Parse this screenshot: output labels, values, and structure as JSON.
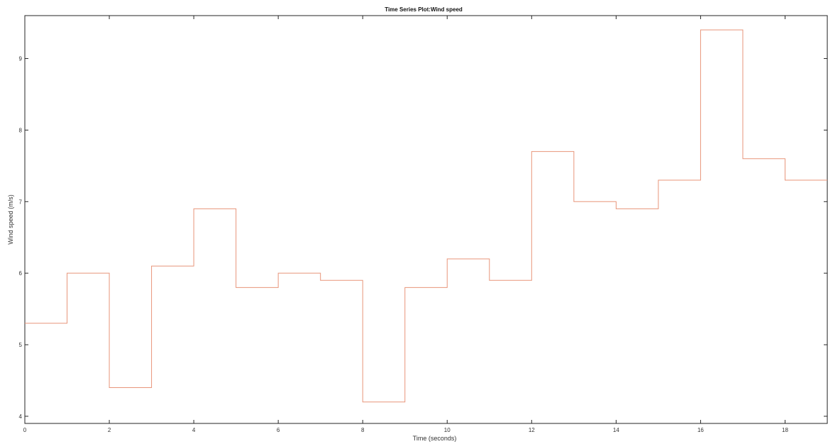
{
  "chart_data": {
    "type": "line",
    "title": "Time Series Plot:Wind speed",
    "xlabel": "Time (seconds)",
    "ylabel": "Wind speed (m/s)",
    "xlim": [
      0,
      19
    ],
    "ylim": [
      3.9,
      9.6
    ],
    "xticks": [
      0,
      2,
      4,
      6,
      8,
      10,
      12,
      14,
      16,
      18
    ],
    "yticks": [
      4,
      5,
      6,
      7,
      8,
      9
    ],
    "line_style": "step",
    "line_color": "#e8957a",
    "grid": false,
    "series": [
      {
        "x": [
          0,
          1,
          2,
          3,
          4,
          5,
          6,
          7,
          8,
          9,
          10,
          11,
          12,
          13,
          14,
          15,
          16,
          17,
          18
        ],
        "values": [
          5.3,
          6.0,
          4.4,
          6.1,
          6.9,
          5.8,
          6.0,
          5.9,
          4.2,
          5.8,
          6.2,
          5.9,
          7.7,
          7.0,
          6.9,
          7.3,
          9.4,
          7.6,
          7.3
        ]
      }
    ]
  }
}
